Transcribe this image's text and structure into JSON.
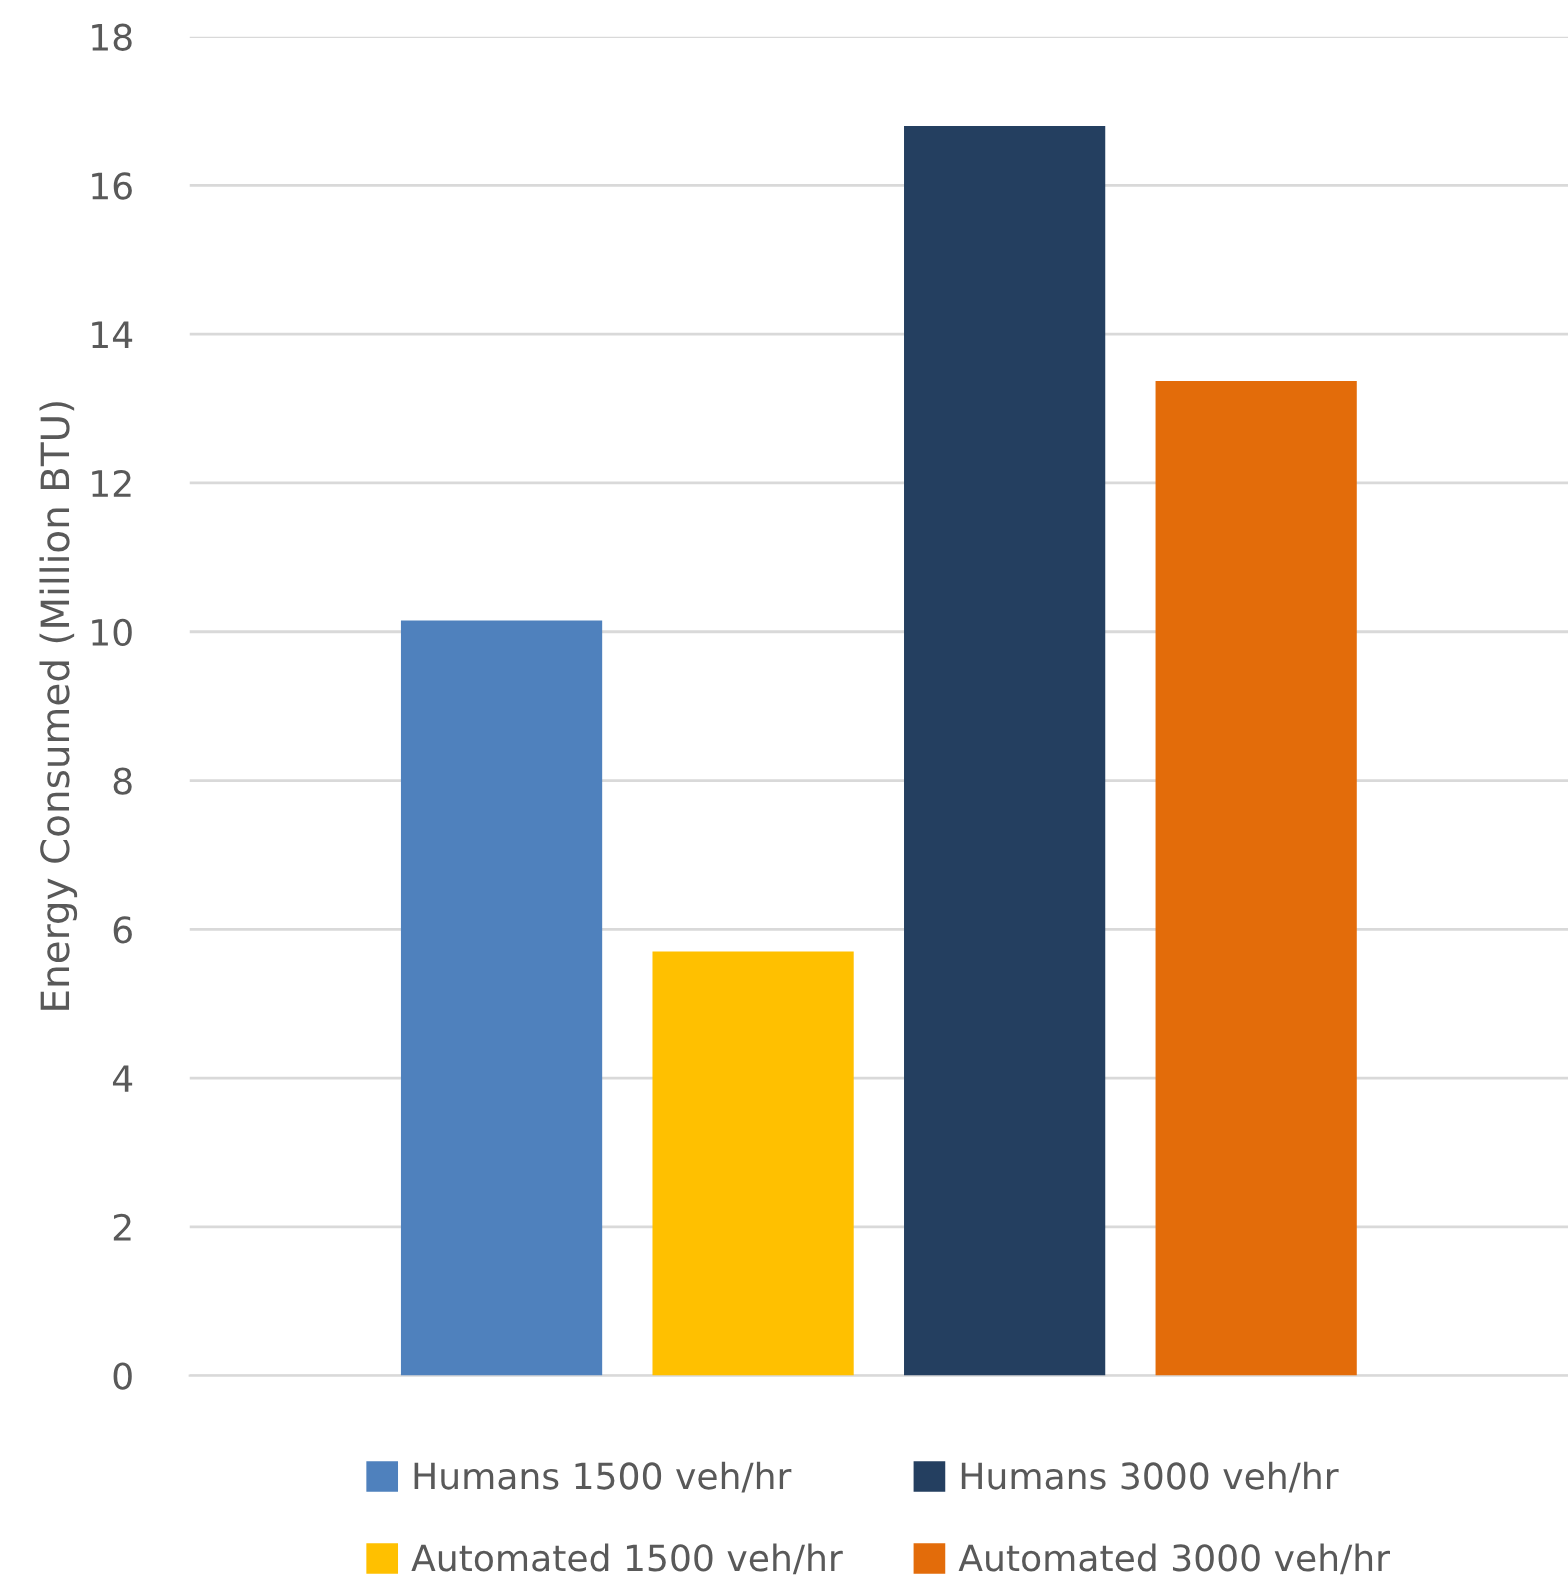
{
  "chart_data": {
    "type": "bar",
    "ylabel": "Energy Consumed (Million BTU)",
    "categories": [
      null
    ],
    "series": [
      {
        "name": "Humans 1500 veh/hr",
        "color": "#4f81bd",
        "values": [
          10.15
        ]
      },
      {
        "name": "Automated 1500 veh/hr",
        "color": "#ffc000",
        "values": [
          5.7
        ]
      },
      {
        "name": "Humans 3000 veh/hr",
        "color": "#243f60",
        "values": [
          16.8
        ]
      },
      {
        "name": "Automated 3000 veh/hr",
        "color": "#e36c0a",
        "values": [
          13.37
        ]
      }
    ],
    "ylim": [
      0,
      18
    ],
    "yticks": [
      0,
      2,
      4,
      6,
      8,
      10,
      12,
      14,
      16,
      18
    ],
    "grid": "y",
    "legend": "bottom",
    "tick_labels": "y"
  }
}
